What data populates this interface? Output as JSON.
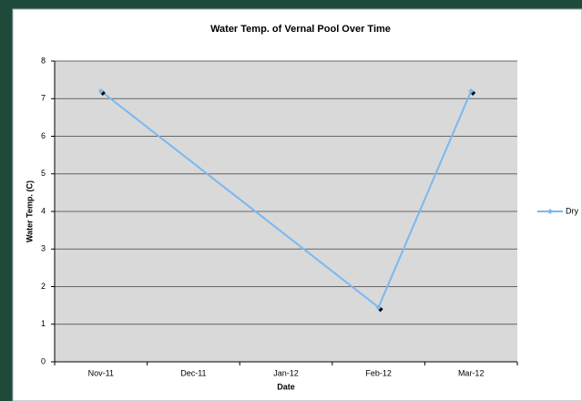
{
  "chart_data": {
    "type": "line",
    "title": "Water Temp. of Vernal Pool Over Time",
    "x_label": "Date",
    "y_label": "Water Temp. (C)",
    "categories": [
      "Nov-11",
      "Dec-11",
      "Jan-12",
      "Feb-12",
      "Mar-12"
    ],
    "series": [
      {
        "name": "Dry",
        "color": "#7ab8f0",
        "values": [
          7.2,
          null,
          null,
          1.45,
          7.2
        ]
      }
    ],
    "span_gaps": true,
    "ylim": [
      0,
      8
    ],
    "yticks": [
      0,
      1,
      2,
      3,
      4,
      5,
      6,
      7,
      8
    ],
    "grid": true,
    "legend": "right"
  }
}
